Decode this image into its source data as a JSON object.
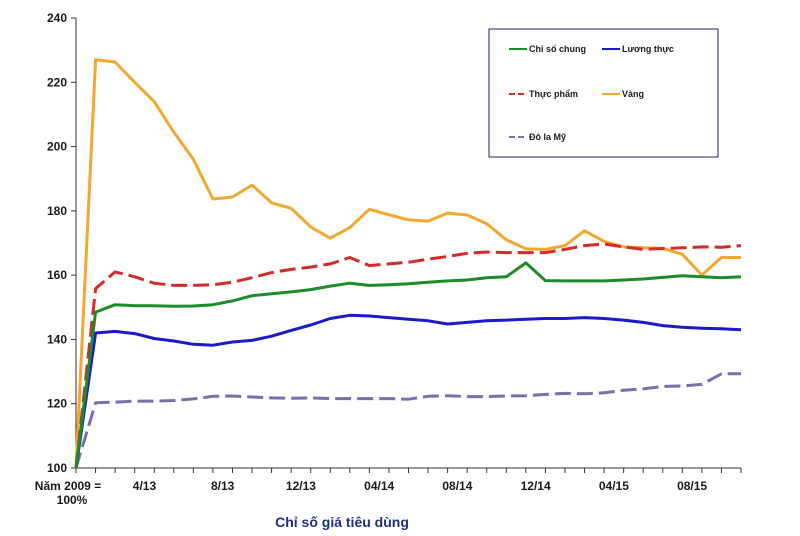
{
  "chart_data": {
    "type": "line",
    "xlabel": "Chỉ số giá tiêu dùng",
    "ylim": [
      100,
      240
    ],
    "yticks": [
      100,
      120,
      140,
      160,
      180,
      200,
      220,
      240
    ],
    "base_label_line1": "Năm 2009 =",
    "base_label_line2": "100%",
    "xtick_labels": [
      {
        "label": "4/13",
        "index": 4
      },
      {
        "label": "8/13",
        "index": 8
      },
      {
        "label": "12/13",
        "index": 12
      },
      {
        "label": "04/14",
        "index": 16
      },
      {
        "label": "08/14",
        "index": 20
      },
      {
        "label": "12/14",
        "index": 24
      },
      {
        "label": "04/15",
        "index": 28
      },
      {
        "label": "08/15",
        "index": 32
      }
    ],
    "grid": false,
    "legend_position": "top-right",
    "legend": [
      {
        "name": "Chỉ số chung",
        "series": 0
      },
      {
        "name": "Lương thực",
        "series": 2
      },
      {
        "name": "Thực phẩm",
        "series": 1
      },
      {
        "name": "Vàng",
        "series": 3
      },
      {
        "name": "Đô la Mỹ",
        "series": 4
      }
    ],
    "series": [
      {
        "name": "Chỉ số chung",
        "color": "#1e8b2b",
        "dash": "solid",
        "values": [
          100,
          148.5,
          150.8,
          150.5,
          150.5,
          150.3,
          150.4,
          150.8,
          152,
          153.6,
          154.2,
          154.8,
          155.5,
          156.6,
          157.5,
          156.8,
          157,
          157.3,
          157.8,
          158.2,
          158.5,
          159.2,
          159.5,
          163.8,
          158.3,
          158.2,
          158.2,
          158.2,
          158.5,
          158.8,
          159.3,
          159.8,
          159.5,
          159.2,
          159.5
        ]
      },
      {
        "name": "Thực phẩm",
        "color": "#d42a2a",
        "dash": "dashed",
        "values": [
          100,
          155.8,
          161,
          159.5,
          157.5,
          156.8,
          156.8,
          157,
          157.8,
          159.2,
          160.8,
          161.8,
          162.5,
          163.5,
          165.5,
          163,
          163.5,
          164,
          165,
          165.8,
          166.8,
          167.2,
          167,
          167,
          167,
          168,
          169.2,
          169.7,
          168.8,
          168,
          168.3,
          168.5,
          168.8,
          168.7,
          169.2
        ]
      },
      {
        "name": "Lương thực",
        "color": "#1a1ac8",
        "dash": "solid",
        "values": [
          100,
          142,
          142.5,
          141.8,
          140.3,
          139.5,
          138.5,
          138.2,
          139.2,
          139.7,
          141,
          142.8,
          144.5,
          146.5,
          147.5,
          147.3,
          146.8,
          146.3,
          145.8,
          144.8,
          145.3,
          145.8,
          146,
          146.3,
          146.5,
          146.5,
          146.8,
          146.5,
          146,
          145.3,
          144.3,
          143.8,
          143.5,
          143.3,
          143
        ]
      },
      {
        "name": "Vàng",
        "color": "#f0a830",
        "dash": "solid",
        "values": [
          100,
          227,
          226.3,
          220,
          214,
          204.5,
          196,
          183.7,
          184.3,
          188,
          182.5,
          180.8,
          175,
          171.5,
          174.8,
          180.5,
          178.8,
          177.2,
          176.8,
          179.3,
          178.7,
          176,
          171,
          168.2,
          168,
          169.2,
          173.8,
          170.5,
          168.8,
          168.5,
          168.3,
          166.5,
          160,
          165.5,
          165.5
        ]
      },
      {
        "name": "Đô la Mỹ",
        "color": "#7a6fa8",
        "dash": "dashed",
        "values": [
          100,
          120.3,
          120.5,
          120.8,
          120.8,
          121,
          121.5,
          122.3,
          122.4,
          122.1,
          121.8,
          121.7,
          121.8,
          121.6,
          121.6,
          121.6,
          121.6,
          121.4,
          122.3,
          122.5,
          122.2,
          122.2,
          122.4,
          122.5,
          122.9,
          123.2,
          123.1,
          123.4,
          124.2,
          124.6,
          125.4,
          125.5,
          126,
          129.3,
          129.3
        ]
      }
    ]
  }
}
